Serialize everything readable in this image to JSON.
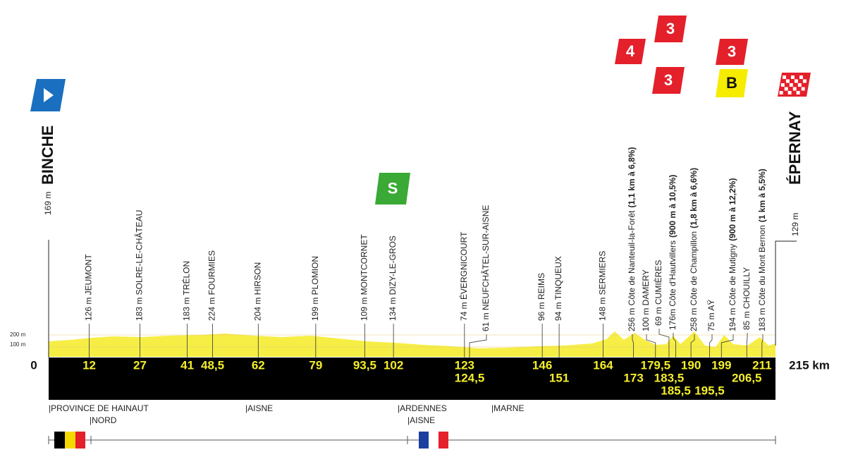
{
  "start": {
    "altitude": "169 m",
    "name": "BINCHE",
    "km": "0"
  },
  "finish": {
    "altitude": "129 m",
    "name": "ÉPERNAY",
    "km": "215 km"
  },
  "elevation_scale": [
    "200 m",
    "100 m"
  ],
  "waypoints": [
    {
      "km": "12",
      "label": "126 m JEUMONT"
    },
    {
      "km": "27",
      "label": "183 m SOLRE-LE-CHÂTEAU"
    },
    {
      "km": "41",
      "label": "183 m TRÉLON"
    },
    {
      "km": "48,5",
      "label": "224 m FOURMIES"
    },
    {
      "km": "62",
      "label": "204 m HIRSON"
    },
    {
      "km": "79",
      "label": "199 m PLOMION"
    },
    {
      "km": "93,5",
      "label": "109 m MONTCORNET"
    },
    {
      "km": "102",
      "label": "134 m DIZY-LE-GROS"
    },
    {
      "km": "123",
      "label": "74 m ÉVERGNICOURT"
    },
    {
      "km": "124,5",
      "label": "61 m NEUFCHÂTEL-SUR-AISNE"
    },
    {
      "km": "146",
      "label": "96 m REIMS"
    },
    {
      "km": "151",
      "label": "94 m TINQUEUX"
    },
    {
      "km": "164",
      "label": "148 m SERMIERS"
    },
    {
      "km": "173",
      "label": "256 m Côte de Nanteuil-la-Forêt",
      "detail": "(1,1 km à 6,8%)"
    },
    {
      "km": "179,5",
      "label": "100 m DAMERY"
    },
    {
      "km": "183,5",
      "label": "69 m CUMIÈRES"
    },
    {
      "km": "185,5",
      "label": "176m Côte d'Hautvillers",
      "detail": "(900 m à 10,5%)"
    },
    {
      "km": "190",
      "label": "258 m Côte de Champillon",
      "detail": "(1,8 km à 6,6%)"
    },
    {
      "km": "195,5",
      "label": "75 m AŸ"
    },
    {
      "km": "199",
      "label": "194 m Côte de Mutigny",
      "detail": "(900 m à 12,2%)"
    },
    {
      "km": "206,5",
      "label": "85 m CHOUILLY"
    },
    {
      "km": "211",
      "label": "183 m Côte du Mont Bernon",
      "detail": "(1 km à 5,5%)"
    }
  ],
  "badges": [
    "4",
    "3",
    "3",
    "3",
    "B",
    "S"
  ],
  "regions": [
    "|PROVINCE DE HAINAUT",
    "|NORD",
    "|AISNE",
    "|ARDENNES",
    "|AISNE",
    "|MARNE"
  ]
}
